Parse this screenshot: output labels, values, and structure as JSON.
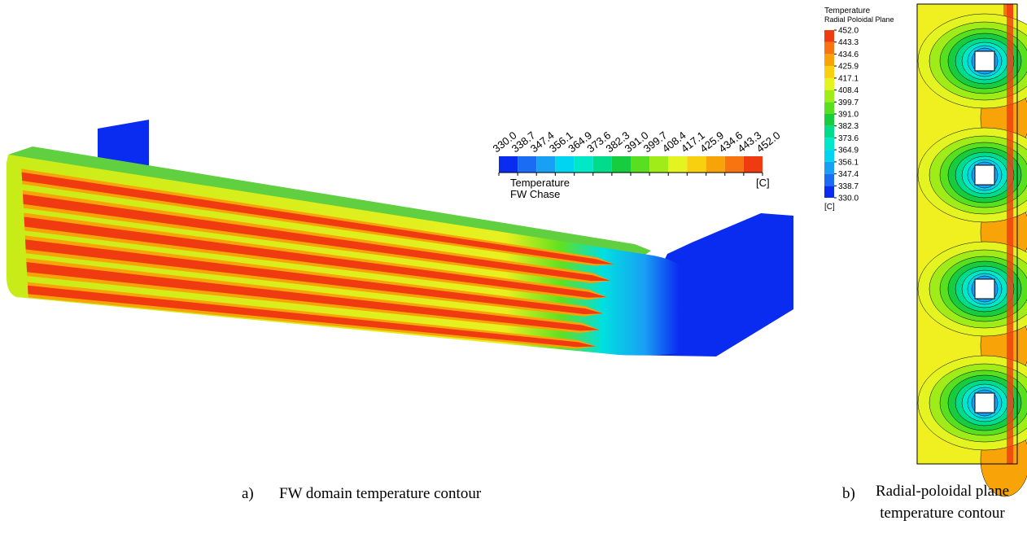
{
  "panel_a": {
    "legend": {
      "title": "Temperature",
      "subtitle": "FW Chase",
      "unit": "[C]",
      "ticks": [
        {
          "value": 330,
          "label": "330.0"
        },
        {
          "value": 338.7,
          "label": "338.7"
        },
        {
          "value": 347.4,
          "label": "347.4"
        },
        {
          "value": 356.1,
          "label": "356.1"
        },
        {
          "value": 364.9,
          "label": "364.9"
        },
        {
          "value": 373.6,
          "label": "373.6"
        },
        {
          "value": 382.3,
          "label": "382.3"
        },
        {
          "value": 391,
          "label": "391.0"
        },
        {
          "value": 399.7,
          "label": "399.7"
        },
        {
          "value": 408.4,
          "label": "408.4"
        },
        {
          "value": 417.1,
          "label": "417.1"
        },
        {
          "value": 425.9,
          "label": "425.9"
        },
        {
          "value": 434.6,
          "label": "434.6"
        },
        {
          "value": 443.3,
          "label": "443.3"
        },
        {
          "value": 452,
          "label": "452.0"
        }
      ],
      "colors": [
        "#0a2cf0",
        "#1a6cf4",
        "#18a0f4",
        "#00d4f0",
        "#00e8c8",
        "#00dc8c",
        "#18cc40",
        "#58e020",
        "#a0ec18",
        "#e4f420",
        "#f8d010",
        "#f8a408",
        "#f87410",
        "#f03a10"
      ]
    },
    "caption_label": "a)",
    "caption": "FW domain temperature contour"
  },
  "panel_b": {
    "legend": {
      "title": "Temperature",
      "subtitle": "Radial Poloidal Plane",
      "unit": "[C]",
      "ticks": [
        {
          "value": 330,
          "label": "330.0"
        },
        {
          "value": 338.7,
          "label": "338.7"
        },
        {
          "value": 347.4,
          "label": "347.4"
        },
        {
          "value": 356.1,
          "label": "356.1"
        },
        {
          "value": 364.9,
          "label": "364.9"
        },
        {
          "value": 373.6,
          "label": "373.6"
        },
        {
          "value": 382.3,
          "label": "382.3"
        },
        {
          "value": 391,
          "label": "391.0"
        },
        {
          "value": 399.7,
          "label": "399.7"
        },
        {
          "value": 408.4,
          "label": "408.4"
        },
        {
          "value": 417.1,
          "label": "417.1"
        },
        {
          "value": 425.9,
          "label": "425.9"
        },
        {
          "value": 434.6,
          "label": "434.6"
        },
        {
          "value": 443.3,
          "label": "443.3"
        },
        {
          "value": 452,
          "label": "452.0"
        }
      ],
      "colors": [
        "#0a2cf0",
        "#1a6cf4",
        "#18a0f4",
        "#00d4f0",
        "#00e8c8",
        "#00dc8c",
        "#18cc40",
        "#58e020",
        "#a0ec18",
        "#e4f420",
        "#f8d010",
        "#f8a408",
        "#f87410",
        "#f03a10"
      ]
    },
    "caption_label": "b)",
    "caption": "Radial-poloidal plane temperature contour"
  }
}
